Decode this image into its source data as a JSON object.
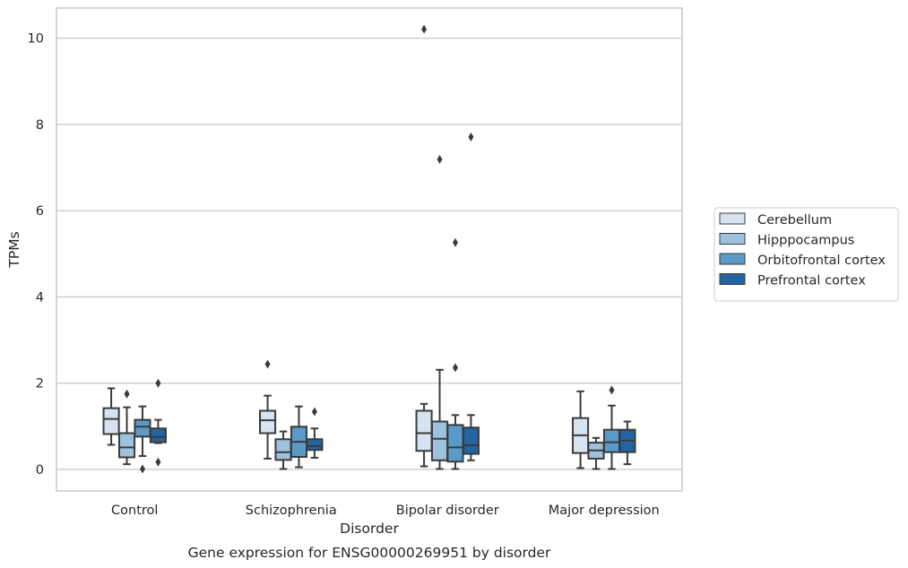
{
  "chart_data": {
    "type": "box",
    "title": "Gene expression for ENSG00000269951 by disorder",
    "xlabel": "Disorder",
    "ylabel": "TPMs",
    "ylim": [
      -0.5,
      10.7
    ],
    "yticks": [
      0,
      2,
      4,
      6,
      8,
      10
    ],
    "grid": "horizontal",
    "legend_position": "right",
    "categories": [
      "Control",
      "Schizophrenia",
      "Bipolar disorder",
      "Major depression"
    ],
    "series": [
      {
        "name": "Cerebellum",
        "color": "#d6e4f1",
        "boxes": [
          {
            "whislo": 0.57,
            "q1": 0.82,
            "med": 1.17,
            "q3": 1.42,
            "whishi": 1.88,
            "fliers": []
          },
          {
            "whislo": 0.25,
            "q1": 0.84,
            "med": 1.14,
            "q3": 1.36,
            "whishi": 1.71,
            "fliers": [
              2.44
            ]
          },
          {
            "whislo": 0.07,
            "q1": 0.43,
            "med": 0.84,
            "q3": 1.36,
            "whishi": 1.52,
            "fliers": [
              10.21
            ]
          },
          {
            "whislo": 0.03,
            "q1": 0.38,
            "med": 0.79,
            "q3": 1.19,
            "whishi": 1.81,
            "fliers": []
          }
        ]
      },
      {
        "name": "Hipppocampus",
        "color": "#9cc2de",
        "boxes": [
          {
            "whislo": 0.12,
            "q1": 0.28,
            "med": 0.51,
            "q3": 0.84,
            "whishi": 1.44,
            "fliers": [
              1.75
            ]
          },
          {
            "whislo": 0.01,
            "q1": 0.22,
            "med": 0.4,
            "q3": 0.7,
            "whishi": 0.88,
            "fliers": []
          },
          {
            "whislo": 0.01,
            "q1": 0.21,
            "med": 0.71,
            "q3": 1.11,
            "whishi": 2.31,
            "fliers": [
              7.19
            ]
          },
          {
            "whislo": 0.01,
            "q1": 0.25,
            "med": 0.44,
            "q3": 0.62,
            "whishi": 0.73,
            "fliers": []
          }
        ]
      },
      {
        "name": "Orbitofrontal cortex",
        "color": "#5a9ac9",
        "boxes": [
          {
            "whislo": 0.31,
            "q1": 0.76,
            "med": 0.99,
            "q3": 1.15,
            "whishi": 1.46,
            "fliers": [
              0.01
            ]
          },
          {
            "whislo": 0.05,
            "q1": 0.29,
            "med": 0.64,
            "q3": 0.99,
            "whishi": 1.46,
            "fliers": []
          },
          {
            "whislo": 0.01,
            "q1": 0.18,
            "med": 0.51,
            "q3": 1.03,
            "whishi": 1.26,
            "fliers": [
              5.26,
              2.36
            ]
          },
          {
            "whislo": 0.01,
            "q1": 0.4,
            "med": 0.63,
            "q3": 0.92,
            "whishi": 1.48,
            "fliers": [
              1.84
            ]
          }
        ]
      },
      {
        "name": "Prefrontal cortex",
        "color": "#2264a4",
        "boxes": [
          {
            "whislo": 0.61,
            "q1": 0.63,
            "med": 0.75,
            "q3": 0.95,
            "whishi": 1.15,
            "fliers": [
              2.0,
              0.17
            ]
          },
          {
            "whislo": 0.27,
            "q1": 0.45,
            "med": 0.54,
            "q3": 0.7,
            "whishi": 0.95,
            "fliers": [
              1.34
            ]
          },
          {
            "whislo": 0.21,
            "q1": 0.36,
            "med": 0.56,
            "q3": 0.97,
            "whishi": 1.26,
            "fliers": [
              7.71
            ]
          },
          {
            "whislo": 0.12,
            "q1": 0.4,
            "med": 0.67,
            "q3": 0.92,
            "whishi": 1.11,
            "fliers": []
          }
        ]
      }
    ]
  }
}
